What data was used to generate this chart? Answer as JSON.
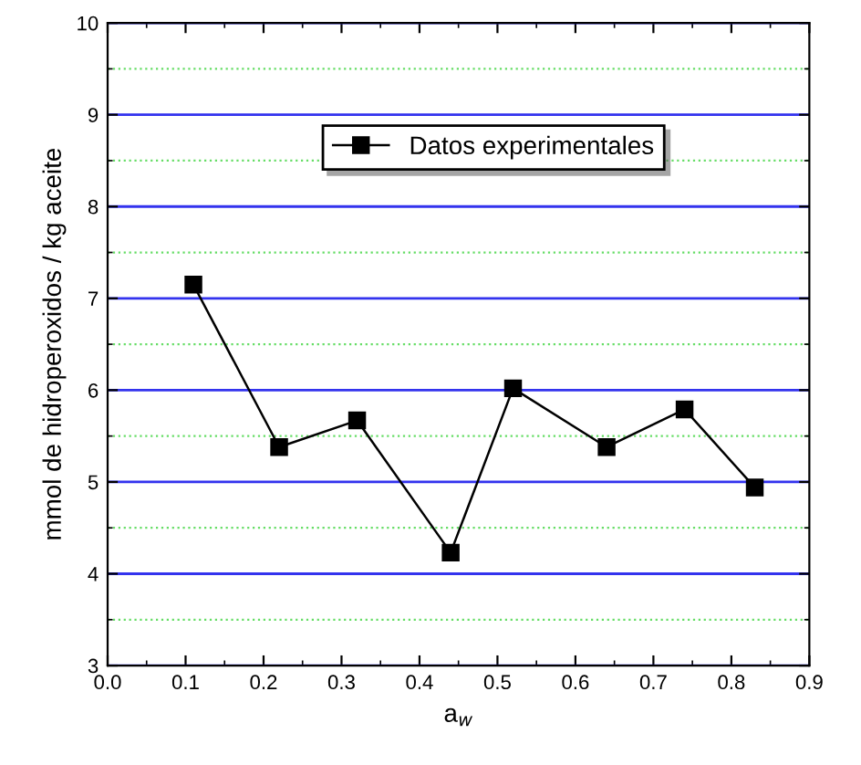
{
  "chart_data": {
    "type": "line",
    "xlabel": "a$_{w}$",
    "ylabel": "mmol de hidroperoxidos / kg aceite",
    "x": [
      0.11,
      0.22,
      0.32,
      0.44,
      0.52,
      0.64,
      0.74,
      0.83
    ],
    "series": [
      {
        "name": "Datos experimentales",
        "color": "#000000",
        "values": [
          7.15,
          5.38,
          5.67,
          4.23,
          6.02,
          5.38,
          5.79,
          4.94
        ]
      }
    ],
    "xlim": [
      0.0,
      0.9
    ],
    "xticks": [
      {
        "value": 0.0,
        "label": "0.0"
      },
      0.1,
      0.2,
      0.3,
      0.4,
      0.5,
      0.6,
      0.7,
      0.8,
      0.9,
      {
        "value": 0.05,
        "label": null
      },
      {
        "value": 0.15,
        "label": null
      },
      {
        "value": 0.25,
        "label": null
      },
      {
        "value": 0.35,
        "label": null
      },
      {
        "value": 0.45,
        "label": null
      },
      {
        "value": 0.55,
        "label": null
      },
      {
        "value": 0.65,
        "label": null
      },
      {
        "value": 0.75,
        "label": null
      },
      {
        "value": 0.85,
        "label": null
      }
    ],
    "ylim": [
      3,
      10
    ],
    "yticks": [
      3,
      4,
      5,
      6,
      7,
      8,
      9,
      10,
      {
        "value": 3.5,
        "label": null
      },
      {
        "value": 4.5,
        "label": null
      },
      {
        "value": 5.5,
        "label": null
      },
      {
        "value": 6.5,
        "label": null
      },
      {
        "value": 7.5,
        "label": null
      },
      {
        "value": 8.5,
        "label": null
      },
      {
        "value": 9.5,
        "label": null
      }
    ],
    "grid": "y",
    "legend": "top",
    "marker": "square",
    "line_style": "solid"
  }
}
